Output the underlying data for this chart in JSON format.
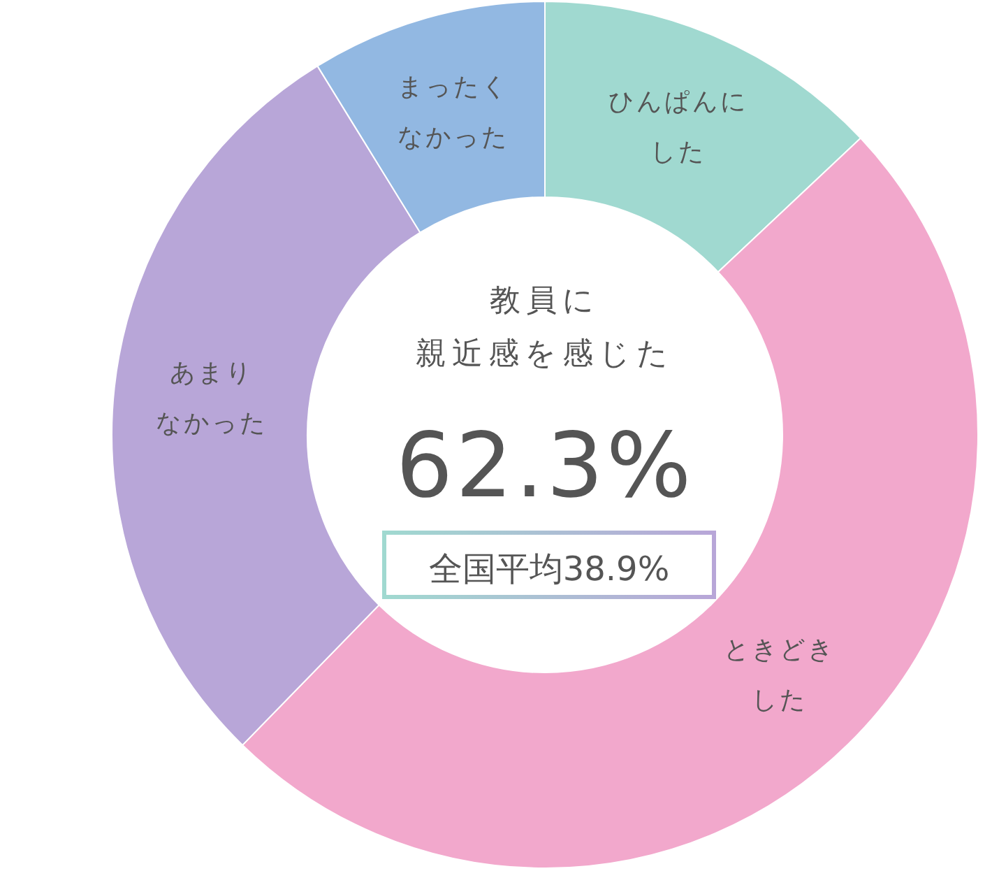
{
  "chart_data": {
    "type": "donut",
    "title": "教員に親近感を感じた",
    "categories": [
      "ひんぱんにした",
      "ときどきした",
      "あまりなかった",
      "まったくなかった"
    ],
    "values": [
      13,
      49.3,
      28.9,
      8.8
    ],
    "colors": [
      "#a0d9d0",
      "#f2a8cc",
      "#b8a6d8",
      "#92b8e2"
    ],
    "annotations": [
      "62.3%",
      "全国平均38.9%"
    ]
  }
}
